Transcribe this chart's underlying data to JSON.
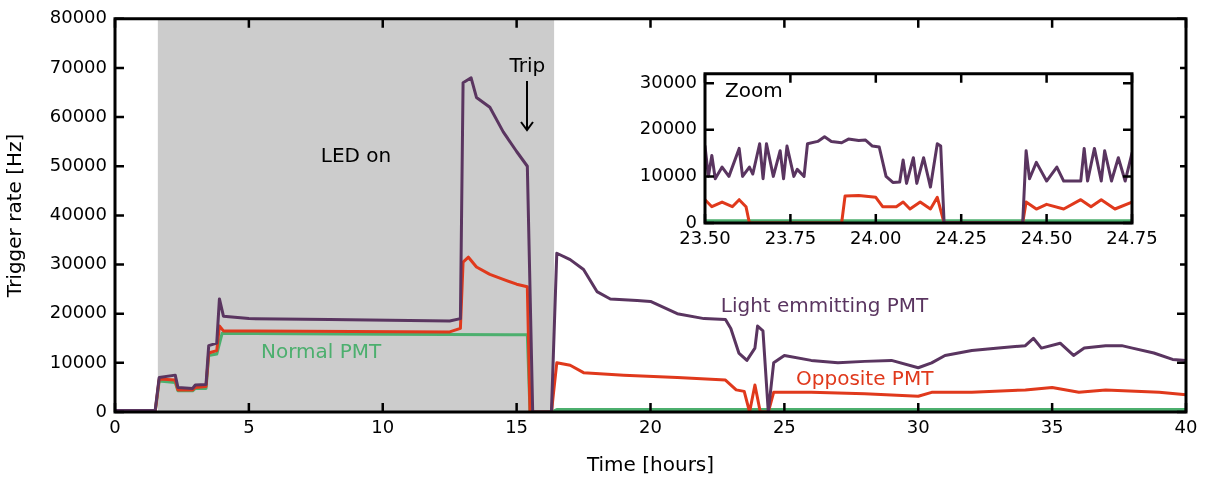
{
  "chart_data": [
    {
      "type": "line",
      "xlabel": "Time [hours]",
      "ylabel": "Trigger rate [Hz]",
      "xlim": [
        0,
        40
      ],
      "xticks": [
        0,
        5,
        10,
        15,
        20,
        25,
        30,
        35,
        40
      ],
      "ylim": [
        0,
        80000
      ],
      "yticks": [
        0,
        10000,
        20000,
        30000,
        40000,
        50000,
        60000,
        70000,
        80000
      ],
      "legend": false,
      "marker": "none",
      "bands": [
        {
          "axis": "x",
          "from": 1.6,
          "to": 16.4,
          "label": "LED on",
          "color": "#cccccc"
        }
      ],
      "annotations": [
        "Trip"
      ],
      "series": [
        {
          "name": "Light emmitting PMT",
          "color": "#5a3560",
          "x": [
            0,
            1.5,
            1.65,
            2.25,
            2.35,
            2.9,
            3.0,
            3.4,
            3.5,
            3.8,
            3.9,
            4.05,
            5,
            8,
            12.5,
            12.9,
            13.0,
            13.3,
            13.5,
            14,
            14.5,
            15,
            15.4,
            15.6,
            16.3,
            16.5,
            17,
            17.5,
            18,
            18.5,
            19.5,
            20,
            21,
            22,
            22.8,
            23,
            23.3,
            23.6,
            23.9,
            24.0,
            24.2,
            24.4,
            24.6,
            25,
            26,
            27,
            28,
            29,
            30,
            30.5,
            31,
            32,
            33,
            34,
            34.3,
            34.6,
            35.3,
            35.8,
            36.2,
            37,
            37.6,
            38,
            38.8,
            39.5,
            40
          ],
          "values": [
            300,
            300,
            7000,
            7500,
            5000,
            4800,
            5500,
            5600,
            13500,
            14000,
            23000,
            19500,
            19000,
            18800,
            18500,
            19000,
            67000,
            68000,
            64000,
            62000,
            57000,
            53000,
            50000,
            0,
            0,
            32300,
            31000,
            29000,
            24500,
            23000,
            22700,
            22500,
            20000,
            19000,
            18800,
            17000,
            12000,
            10500,
            13000,
            17500,
            16500,
            0,
            10000,
            11500,
            10500,
            10000,
            10300,
            10500,
            9000,
            10000,
            11500,
            12500,
            13000,
            13500,
            15000,
            13000,
            14000,
            11500,
            13000,
            13500,
            13500,
            13000,
            12000,
            10700,
            10500
          ]
        },
        {
          "name": "Opposite PMT",
          "color": "#e0391c",
          "x": [
            0,
            1.5,
            1.65,
            2.25,
            2.35,
            2.9,
            3.0,
            3.4,
            3.5,
            3.8,
            3.9,
            4.05,
            12.5,
            12.9,
            13,
            13.2,
            13.5,
            14,
            14.5,
            15,
            15.4,
            15.5,
            16.3,
            16.5,
            17,
            17.5,
            19,
            21,
            22.8,
            23.2,
            23.5,
            23.7,
            23.9,
            24.1,
            24.4,
            24.6,
            26,
            28,
            30,
            30.5,
            32,
            34,
            35,
            36,
            37,
            39,
            40
          ],
          "values": [
            0,
            0,
            6700,
            6500,
            4500,
            4500,
            5000,
            5200,
            12000,
            12500,
            17500,
            16500,
            16300,
            17000,
            30500,
            31500,
            29500,
            28000,
            27000,
            26000,
            25500,
            0,
            0,
            10000,
            9500,
            8000,
            7500,
            7000,
            6500,
            4500,
            4200,
            0,
            5500,
            0,
            0,
            4000,
            4000,
            3700,
            3200,
            4000,
            4000,
            4500,
            5000,
            4000,
            4500,
            4000,
            3500
          ]
        },
        {
          "name": "Normal PMT",
          "color": "#4caf6e",
          "x": [
            0,
            1.5,
            1.65,
            2.25,
            2.35,
            2.9,
            3.0,
            3.4,
            3.5,
            3.8,
            4.0,
            10,
            15.4,
            15.5,
            16.3,
            16.5,
            40
          ],
          "values": [
            0,
            0,
            6300,
            6000,
            4300,
            4300,
            4800,
            4800,
            11500,
            11800,
            16000,
            15800,
            15700,
            0,
            0,
            500,
            500
          ]
        }
      ]
    },
    {
      "type": "line",
      "xlim": [
        23.5,
        24.75
      ],
      "xticks": [
        {
          "value": 23.5,
          "label": "23.50"
        },
        {
          "value": 23.75,
          "label": "23.75"
        },
        {
          "value": 24.0,
          "label": "24.00"
        },
        {
          "value": 24.25,
          "label": "24.25"
        },
        {
          "value": 24.5,
          "label": "24.50"
        },
        {
          "value": 24.75,
          "label": "24.75"
        }
      ],
      "ylim": [
        0,
        32000
      ],
      "yticks": [
        0,
        10000,
        20000,
        30000
      ],
      "legend": false,
      "marker": "none",
      "annotations": [
        "Zoom"
      ],
      "series": [
        {
          "color": "#5a3560",
          "x": [
            23.5,
            23.51,
            23.52,
            23.53,
            23.55,
            23.57,
            23.6,
            23.61,
            23.63,
            23.64,
            23.66,
            23.67,
            23.68,
            23.7,
            23.72,
            23.73,
            23.74,
            23.76,
            23.77,
            23.79,
            23.8,
            23.83,
            23.85,
            23.87,
            23.9,
            23.92,
            23.95,
            23.97,
            23.99,
            24.01,
            24.03,
            24.05,
            24.07,
            24.08,
            24.09,
            24.11,
            24.12,
            24.14,
            24.16,
            24.18,
            24.19,
            24.2,
            24.43,
            24.44,
            24.45,
            24.47,
            24.5,
            24.53,
            24.55,
            24.6,
            24.61,
            24.62,
            24.64,
            24.66,
            24.67,
            24.69,
            24.71,
            24.73,
            24.75
          ],
          "values": [
            16500,
            10000,
            14500,
            9500,
            12000,
            10000,
            16000,
            10000,
            12000,
            10500,
            17000,
            9500,
            17000,
            10000,
            15500,
            9500,
            16500,
            10000,
            11500,
            10000,
            17000,
            17500,
            18500,
            17500,
            17200,
            18000,
            17700,
            17800,
            16500,
            16300,
            10000,
            8700,
            8800,
            13500,
            8500,
            14000,
            8500,
            14000,
            7700,
            17000,
            16500,
            0,
            0,
            15500,
            9500,
            13000,
            9000,
            12000,
            9000,
            9000,
            16000,
            9000,
            16000,
            9000,
            15500,
            9000,
            14000,
            9000,
            15000
          ]
        },
        {
          "color": "#e0391c",
          "x": [
            23.5,
            23.52,
            23.55,
            23.58,
            23.6,
            23.62,
            23.63,
            23.9,
            23.91,
            23.95,
            24.0,
            24.02,
            24.06,
            24.08,
            24.1,
            24.13,
            24.16,
            24.18,
            24.2,
            24.43,
            24.44,
            24.47,
            24.5,
            24.55,
            24.6,
            24.63,
            24.66,
            24.7,
            24.75
          ],
          "values": [
            5000,
            3500,
            4500,
            3500,
            5000,
            3500,
            0,
            0,
            5800,
            5900,
            5500,
            3500,
            3500,
            4500,
            3000,
            4500,
            3000,
            5500,
            0,
            0,
            4500,
            3000,
            4000,
            3000,
            5000,
            3500,
            5000,
            3000,
            4500
          ]
        },
        {
          "color": "#4caf6e",
          "x": [
            23.5,
            24.75
          ],
          "values": [
            500,
            500
          ]
        }
      ]
    }
  ]
}
